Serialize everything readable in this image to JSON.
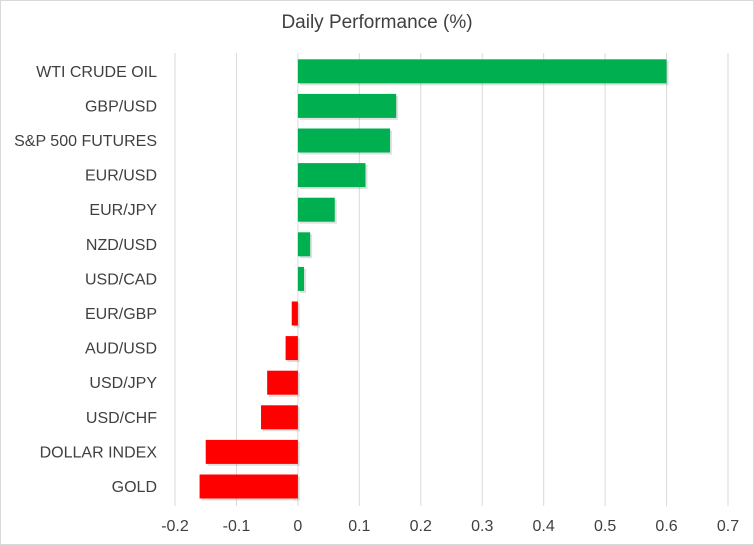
{
  "chart_data": {
    "type": "bar",
    "orientation": "horizontal",
    "title": "Daily Performance (%)",
    "xlabel": "",
    "ylabel": "",
    "categories": [
      "WTI CRUDE OIL",
      "GBP/USD",
      "S&P 500 FUTURES",
      "EUR/USD",
      "EUR/JPY",
      "NZD/USD",
      "USD/CAD",
      "EUR/GBP",
      "AUD/USD",
      "USD/JPY",
      "USD/CHF",
      "DOLLAR INDEX",
      "GOLD"
    ],
    "values": [
      0.6,
      0.16,
      0.15,
      0.11,
      0.06,
      0.02,
      0.01,
      -0.01,
      -0.02,
      -0.05,
      -0.06,
      -0.15,
      -0.16
    ],
    "xlim": [
      -0.2,
      0.7
    ],
    "x_ticks": [
      -0.2,
      -0.1,
      0,
      0.1,
      0.2,
      0.3,
      0.4,
      0.5,
      0.6,
      0.7
    ],
    "x_tick_labels": [
      "-0.2",
      "-0.1",
      "0",
      "0.1",
      "0.2",
      "0.3",
      "0.4",
      "0.5",
      "0.6",
      "0.7"
    ],
    "grid": "vertical",
    "legend": "none",
    "colors": {
      "positive": "#00b050",
      "negative": "#ff0000",
      "grid": "#d9d9d9",
      "text": "#404040"
    }
  }
}
